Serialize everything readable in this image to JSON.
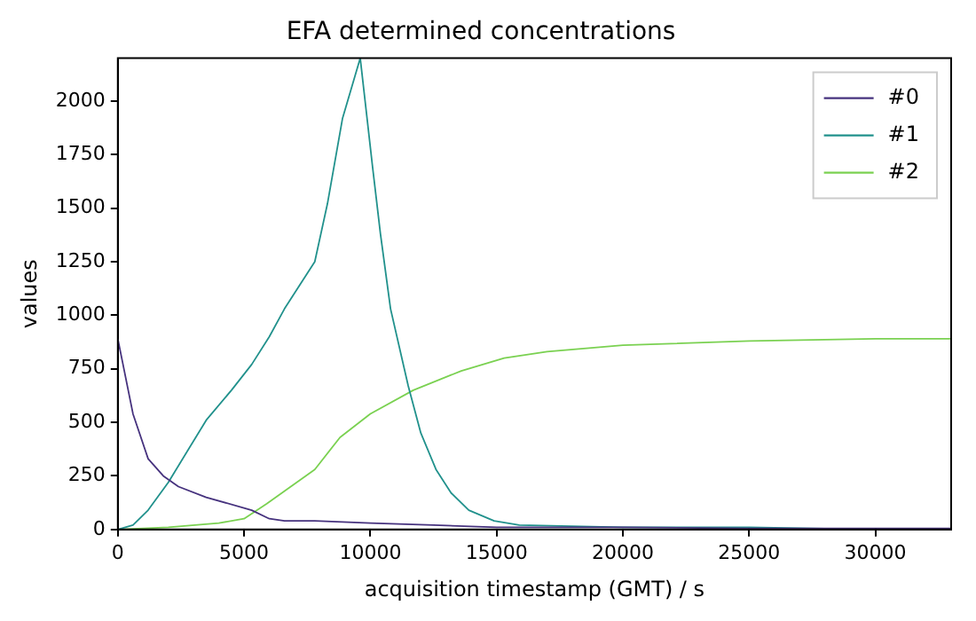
{
  "chart_data": {
    "type": "line",
    "title": "EFA determined concentrations",
    "xlabel": "acquisition timestamp (GMT) / s",
    "ylabel": "values",
    "xlim": [
      0,
      33000
    ],
    "xticks": [
      0,
      5000,
      10000,
      15000,
      20000,
      25000,
      30000
    ],
    "ylim": [
      0,
      2200
    ],
    "yticks": [
      0,
      250,
      500,
      750,
      1000,
      1250,
      1500,
      1750,
      2000
    ],
    "grid": false,
    "legend": "top right",
    "marker": "none",
    "line_style": "solid",
    "series": [
      {
        "name": "#0",
        "color": "#46327e",
        "x": [
          0,
          600,
          1200,
          1800,
          2400,
          3500,
          5300,
          6000,
          6600,
          7800,
          10000,
          12500,
          15000,
          20000,
          25000,
          30000,
          33000
        ],
        "values": [
          890,
          540,
          330,
          250,
          200,
          150,
          90,
          50,
          40,
          40,
          30,
          20,
          10,
          10,
          5,
          5,
          5
        ]
      },
      {
        "name": "#1",
        "color": "#21918c",
        "x": [
          0,
          600,
          1200,
          2000,
          3500,
          4500,
          5300,
          6000,
          6600,
          7800,
          8300,
          8900,
          9600,
          10100,
          10400,
          10800,
          11500,
          12000,
          12600,
          13200,
          13900,
          14900,
          15900,
          20000,
          25000,
          30000,
          33000
        ],
        "values": [
          0,
          20,
          90,
          220,
          510,
          650,
          770,
          900,
          1030,
          1250,
          1520,
          1920,
          2200,
          1680,
          1380,
          1030,
          670,
          450,
          280,
          170,
          90,
          40,
          20,
          10,
          10,
          0,
          0
        ]
      },
      {
        "name": "#2",
        "color": "#7ad151",
        "x": [
          0,
          2000,
          4000,
          5000,
          5900,
          7800,
          8800,
          10000,
          11700,
          13600,
          15300,
          17000,
          20000,
          25000,
          30000,
          33000
        ],
        "values": [
          0,
          10,
          30,
          50,
          120,
          280,
          430,
          540,
          650,
          740,
          800,
          830,
          860,
          880,
          890,
          890
        ]
      }
    ]
  }
}
